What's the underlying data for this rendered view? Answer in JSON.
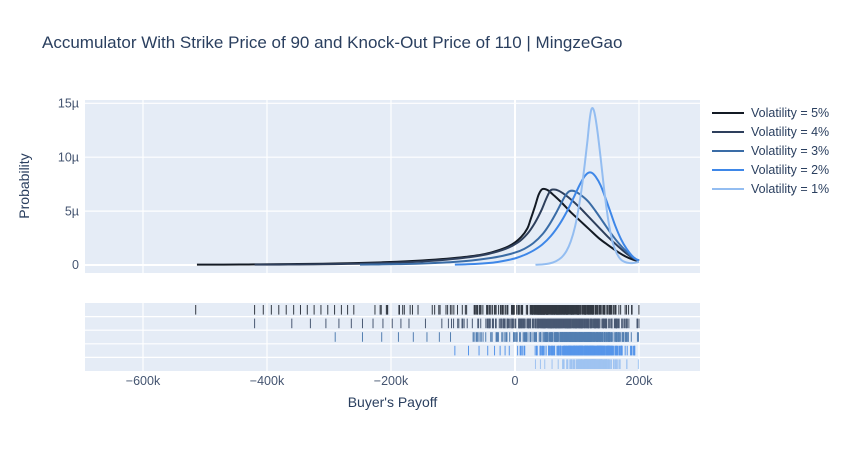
{
  "chart_data": {
    "type": "line",
    "subtype": "distplot_kde_with_rug",
    "title": "Accumulator With Strike Price of 90 and Knock-Out Price of 110 | MingzeGao",
    "xlabel": "Buyer's Payoff",
    "ylabel": "Probability",
    "x_unit": "payoff in thousands (k)",
    "y_unit": "probability density in micro-units (µ = 1e-6)",
    "x_tick_values": [
      -600,
      -400,
      -200,
      0,
      200
    ],
    "x_tick_labels": [
      "−600k",
      "−400k",
      "−200k",
      "0",
      "200k"
    ],
    "y_tick_values": [
      0,
      5,
      10,
      15
    ],
    "y_tick_labels": [
      "0",
      "5µ",
      "10µ",
      "15µ"
    ],
    "x_axis_range_k": [
      -694,
      298
    ],
    "y_axis_range_u": [
      -0.74,
      16.05
    ],
    "grid": true,
    "legend_position": "right",
    "plot_bgcolor": "#e5ecf6",
    "gridline_color": "#ffffff",
    "text_color": "#2a3f5f",
    "tick_label_color": "#445470",
    "series": [
      {
        "name": "Volatility = 5%",
        "color": "#131a24",
        "kde_points": [
          [
            -513,
            0.03
          ],
          [
            -470,
            0.04
          ],
          [
            -430,
            0.05
          ],
          [
            -390,
            0.07
          ],
          [
            -350,
            0.09
          ],
          [
            -310,
            0.12
          ],
          [
            -270,
            0.16
          ],
          [
            -230,
            0.22
          ],
          [
            -190,
            0.3
          ],
          [
            -150,
            0.42
          ],
          [
            -110,
            0.58
          ],
          [
            -80,
            0.75
          ],
          [
            -50,
            1.0
          ],
          [
            -25,
            1.4
          ],
          [
            -5,
            1.9
          ],
          [
            10,
            2.6
          ],
          [
            20,
            3.4
          ],
          [
            25,
            4.2
          ],
          [
            32,
            5.4
          ],
          [
            38,
            6.5
          ],
          [
            43,
            7.0
          ],
          [
            48,
            7.05
          ],
          [
            54,
            6.9
          ],
          [
            62,
            6.5
          ],
          [
            75,
            5.8
          ],
          [
            90,
            4.9
          ],
          [
            105,
            4.1
          ],
          [
            120,
            3.3
          ],
          [
            135,
            2.5
          ],
          [
            150,
            1.85
          ],
          [
            165,
            1.25
          ],
          [
            178,
            0.8
          ],
          [
            190,
            0.5
          ],
          [
            200,
            0.35
          ]
        ],
        "peak": {
          "x_k": 45,
          "y_u": 7.05
        },
        "rug": {
          "min_k": -515,
          "max_k": 200,
          "outliers_k": [
            -515,
            -420,
            -406,
            -393,
            -381,
            -369,
            -357,
            -346,
            -335,
            -324,
            -313,
            -302,
            -291,
            -280,
            -270,
            -260
          ],
          "body_min_k": -255,
          "n_ticks": 380
        }
      },
      {
        "name": "Volatility = 4%",
        "color": "#2e3f5c",
        "kde_points": [
          [
            -420,
            0.03
          ],
          [
            -380,
            0.04
          ],
          [
            -350,
            0.05
          ],
          [
            -310,
            0.07
          ],
          [
            -270,
            0.1
          ],
          [
            -230,
            0.15
          ],
          [
            -190,
            0.22
          ],
          [
            -150,
            0.33
          ],
          [
            -110,
            0.5
          ],
          [
            -75,
            0.72
          ],
          [
            -45,
            1.0
          ],
          [
            -15,
            1.5
          ],
          [
            5,
            2.1
          ],
          [
            20,
            2.9
          ],
          [
            32,
            3.9
          ],
          [
            42,
            5.0
          ],
          [
            50,
            6.1
          ],
          [
            57,
            6.9
          ],
          [
            63,
            7.0
          ],
          [
            70,
            6.9
          ],
          [
            80,
            6.55
          ],
          [
            92,
            6.0
          ],
          [
            105,
            5.3
          ],
          [
            120,
            4.4
          ],
          [
            135,
            3.5
          ],
          [
            150,
            2.6
          ],
          [
            165,
            1.8
          ],
          [
            178,
            1.15
          ],
          [
            190,
            0.65
          ],
          [
            200,
            0.4
          ]
        ],
        "peak": {
          "x_k": 60,
          "y_u": 7.0
        },
        "rug": {
          "min_k": -420,
          "max_k": 200,
          "outliers_k": [
            -420,
            -360,
            -330,
            -305,
            -284,
            -264,
            -246,
            -229,
            -213,
            -198,
            -184,
            -171
          ],
          "body_min_k": -165,
          "n_ticks": 380
        }
      },
      {
        "name": "Volatility = 3%",
        "color": "#3a6ca6",
        "kde_points": [
          [
            -250,
            0.03
          ],
          [
            -220,
            0.05
          ],
          [
            -190,
            0.08
          ],
          [
            -160,
            0.12
          ],
          [
            -130,
            0.19
          ],
          [
            -100,
            0.28
          ],
          [
            -70,
            0.42
          ],
          [
            -45,
            0.6
          ],
          [
            -20,
            0.85
          ],
          [
            0,
            1.15
          ],
          [
            15,
            1.5
          ],
          [
            30,
            2.05
          ],
          [
            45,
            2.9
          ],
          [
            56,
            3.8
          ],
          [
            66,
            4.8
          ],
          [
            75,
            5.8
          ],
          [
            82,
            6.5
          ],
          [
            88,
            6.85
          ],
          [
            96,
            6.85
          ],
          [
            106,
            6.5
          ],
          [
            118,
            5.9
          ],
          [
            130,
            5.0
          ],
          [
            142,
            4.0
          ],
          [
            154,
            3.0
          ],
          [
            166,
            2.1
          ],
          [
            178,
            1.35
          ],
          [
            188,
            0.8
          ],
          [
            196,
            0.5
          ],
          [
            200,
            0.4
          ]
        ],
        "peak": {
          "x_k": 92,
          "y_u": 6.9
        },
        "rug": {
          "min_k": -290,
          "max_k": 200,
          "outliers_k": [
            -290,
            -246,
            -215,
            -188,
            -164,
            -142,
            -122,
            -104
          ],
          "body_min_k": -98,
          "n_ticks": 360
        }
      },
      {
        "name": "Volatility = 2%",
        "color": "#3e87e8",
        "kde_points": [
          [
            -97,
            0.03
          ],
          [
            -80,
            0.06
          ],
          [
            -62,
            0.1
          ],
          [
            -45,
            0.17
          ],
          [
            -28,
            0.28
          ],
          [
            -12,
            0.45
          ],
          [
            2,
            0.65
          ],
          [
            16,
            0.95
          ],
          [
            30,
            1.35
          ],
          [
            44,
            1.9
          ],
          [
            58,
            2.7
          ],
          [
            72,
            3.8
          ],
          [
            84,
            5.0
          ],
          [
            95,
            6.3
          ],
          [
            104,
            7.4
          ],
          [
            112,
            8.2
          ],
          [
            118,
            8.55
          ],
          [
            124,
            8.55
          ],
          [
            130,
            8.2
          ],
          [
            138,
            7.4
          ],
          [
            146,
            6.2
          ],
          [
            154,
            4.9
          ],
          [
            162,
            3.6
          ],
          [
            171,
            2.4
          ],
          [
            180,
            1.5
          ],
          [
            188,
            0.9
          ],
          [
            195,
            0.55
          ],
          [
            200,
            0.45
          ]
        ],
        "peak": {
          "x_k": 121,
          "y_u": 8.6
        },
        "rug": {
          "min_k": -97,
          "max_k": 200,
          "outliers_k": [
            -97,
            -75,
            -58,
            -44,
            -33,
            -24,
            -16
          ],
          "body_min_k": -12,
          "n_ticks": 340
        }
      },
      {
        "name": "Volatility = 1%",
        "color": "#93bdf1",
        "kde_points": [
          [
            33,
            0.02
          ],
          [
            45,
            0.06
          ],
          [
            56,
            0.15
          ],
          [
            66,
            0.35
          ],
          [
            75,
            0.7
          ],
          [
            83,
            1.3
          ],
          [
            90,
            2.2
          ],
          [
            97,
            3.6
          ],
          [
            103,
            5.4
          ],
          [
            108,
            7.3
          ],
          [
            113,
            9.6
          ],
          [
            117,
            11.6
          ],
          [
            120,
            13.3
          ],
          [
            123,
            14.4
          ],
          [
            126,
            14.5
          ],
          [
            129,
            13.9
          ],
          [
            133,
            12.4
          ],
          [
            138,
            10.0
          ],
          [
            143,
            7.4
          ],
          [
            148,
            5.1
          ],
          [
            153,
            3.3
          ],
          [
            158,
            2.0
          ],
          [
            164,
            1.1
          ],
          [
            170,
            0.55
          ],
          [
            177,
            0.28
          ],
          [
            185,
            0.18
          ],
          [
            192,
            0.2
          ],
          [
            200,
            0.3
          ]
        ],
        "peak": {
          "x_k": 124,
          "y_u": 14.5
        },
        "rug": {
          "min_k": 33,
          "max_k": 200,
          "outliers_k": [
            33,
            41,
            48
          ],
          "body_min_k": 50,
          "n_ticks": 320
        }
      }
    ]
  }
}
